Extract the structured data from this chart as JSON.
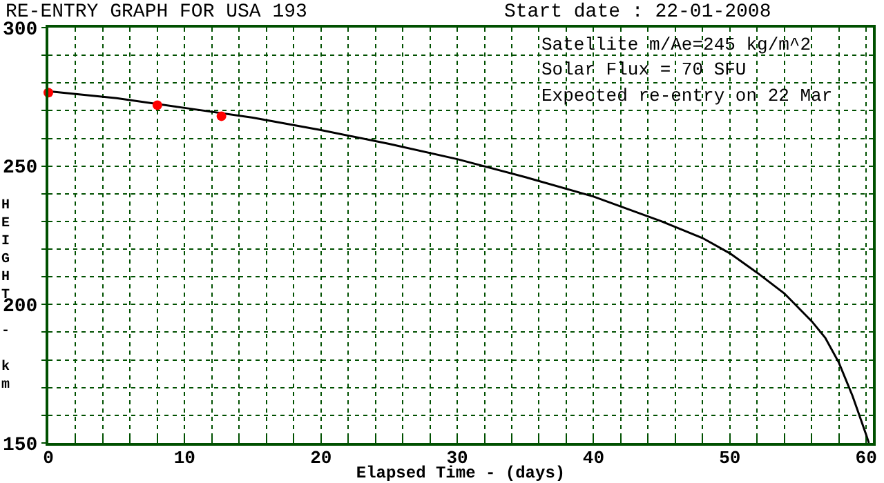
{
  "chart_data": {
    "type": "line",
    "title": "RE-ENTRY GRAPH FOR USA 193",
    "subtitle": "Start date : 22-01-2008",
    "xlabel": "Elapsed Time - (days)",
    "ylabel": "HEIGHT - km",
    "annotations": [
      "Satellite m/Ae=245 kg/m^2",
      "Solar Flux = 70 SFU",
      "Expected re-entry on 22 Mar"
    ],
    "series": [
      {
        "color": "#000000",
        "marker": "none",
        "x": [
          0,
          5,
          10,
          15,
          20,
          25,
          30,
          35,
          40,
          45,
          48,
          50,
          52,
          54,
          56,
          57,
          58,
          59,
          59.5,
          60,
          60.2
        ],
        "values": [
          277,
          274.5,
          271,
          267.5,
          263,
          258,
          252.5,
          246,
          239,
          230,
          224,
          218.5,
          211.5,
          204,
          194,
          188,
          179,
          167,
          160,
          153,
          150
        ]
      },
      {
        "type": "scatter",
        "color": "#ff0000",
        "marker": "circle",
        "x": [
          0,
          8,
          12.7
        ],
        "values": [
          276.5,
          272,
          268
        ]
      }
    ],
    "xlim": [
      0,
      60.5
    ],
    "ylim": [
      150,
      300
    ],
    "xticks": [
      0,
      {
        "value": 2,
        "label": null
      },
      {
        "value": 4,
        "label": null
      },
      {
        "value": 6,
        "label": null
      },
      {
        "value": 8,
        "label": null
      },
      10,
      {
        "value": 12,
        "label": null
      },
      {
        "value": 14,
        "label": null
      },
      {
        "value": 16,
        "label": null
      },
      {
        "value": 18,
        "label": null
      },
      20,
      {
        "value": 22,
        "label": null
      },
      {
        "value": 24,
        "label": null
      },
      {
        "value": 26,
        "label": null
      },
      {
        "value": 28,
        "label": null
      },
      30,
      {
        "value": 32,
        "label": null
      },
      {
        "value": 34,
        "label": null
      },
      {
        "value": 36,
        "label": null
      },
      {
        "value": 38,
        "label": null
      },
      40,
      {
        "value": 42,
        "label": null
      },
      {
        "value": 44,
        "label": null
      },
      {
        "value": 46,
        "label": null
      },
      {
        "value": 48,
        "label": null
      },
      50,
      {
        "value": 52,
        "label": null
      },
      {
        "value": 54,
        "label": null
      },
      {
        "value": 56,
        "label": null
      },
      {
        "value": 58,
        "label": null
      },
      60
    ],
    "yticks": [
      150,
      {
        "value": 160,
        "label": null
      },
      {
        "value": 170,
        "label": null
      },
      {
        "value": 180,
        "label": null
      },
      {
        "value": 190,
        "label": null
      },
      200,
      {
        "value": 210,
        "label": null
      },
      {
        "value": 220,
        "label": null
      },
      {
        "value": 230,
        "label": null
      },
      {
        "value": 240,
        "label": null
      },
      250,
      {
        "value": 260,
        "label": null
      },
      {
        "value": 270,
        "label": null
      },
      {
        "value": 280,
        "label": null
      },
      {
        "value": 290,
        "label": null
      },
      300
    ],
    "grid": true
  }
}
